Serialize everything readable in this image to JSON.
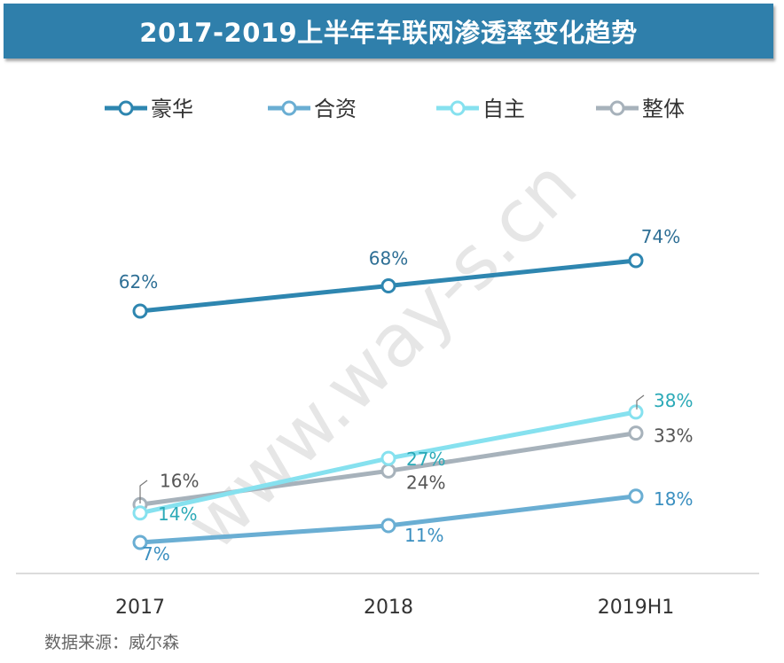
{
  "title": "2017-2019上半年车联网渗透率变化趋势",
  "source": "数据来源：威尔森",
  "watermark": "www.way-s.cn",
  "chart_data": {
    "type": "line",
    "title": "2017-2019上半年车联网渗透率变化趋势",
    "categories": [
      "2017",
      "2018",
      "2019H1"
    ],
    "series": [
      {
        "name": "豪华",
        "values": [
          62,
          68,
          74
        ],
        "labels": [
          "62%",
          "68%",
          "74%"
        ],
        "color": "#2e86b0",
        "label_color": "#2e6f95"
      },
      {
        "name": "合资",
        "values": [
          7,
          11,
          18
        ],
        "labels": [
          "7%",
          "11%",
          "18%"
        ],
        "color": "#6aaed3",
        "label_color": "#3a8fc0"
      },
      {
        "name": "自主",
        "values": [
          14,
          27,
          38
        ],
        "labels": [
          "14%",
          "27%",
          "38%"
        ],
        "color": "#86e1ef",
        "label_color": "#2aa9b7"
      },
      {
        "name": "整体",
        "values": [
          16,
          24,
          33
        ],
        "labels": [
          "16%",
          "24%",
          "33%"
        ],
        "color": "#a7b2bb",
        "label_color": "#555555"
      }
    ],
    "xlabel": "",
    "ylabel": "",
    "ylim": [
      0,
      100
    ],
    "grid": false,
    "legend_position": "top"
  }
}
